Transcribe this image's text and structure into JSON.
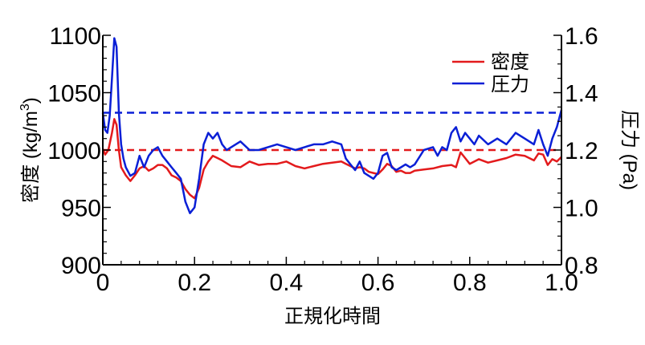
{
  "chart_data": {
    "type": "line",
    "title": "",
    "xlabel": "正規化時間",
    "ylabel_left": "密度 (kg/m³)",
    "ylabel_left_parts": {
      "main": "密度 (kg/m",
      "sup": "3",
      "close": ")"
    },
    "ylabel_right": "圧力 (Pa)",
    "xlim": [
      0,
      1.0
    ],
    "ylim_left": [
      900,
      1100
    ],
    "ylim_right": [
      0.8,
      1.6
    ],
    "x_ticks": [
      {
        "value": 0,
        "label": "0"
      },
      {
        "value": 0.2,
        "label": "0.2"
      },
      {
        "value": 0.4,
        "label": "0.4"
      },
      {
        "value": 0.6,
        "label": "0.6"
      },
      {
        "value": 0.8,
        "label": "0.8"
      },
      {
        "value": 1.0,
        "label": "1.0"
      }
    ],
    "y_left_ticks": [
      {
        "value": 900,
        "label": "900"
      },
      {
        "value": 950,
        "label": "950"
      },
      {
        "value": 1000,
        "label": "1000"
      },
      {
        "value": 1050,
        "label": "1050"
      },
      {
        "value": 1100,
        "label": "1100"
      }
    ],
    "y_right_ticks": [
      {
        "value": 0.8,
        "label": "0.8"
      },
      {
        "value": 1.0,
        "label": "1.0"
      },
      {
        "value": 1.2,
        "label": "1.2"
      },
      {
        "value": 1.4,
        "label": "1.4"
      },
      {
        "value": 1.6,
        "label": "1.6"
      }
    ],
    "grid": false,
    "legend_position": "top-right",
    "colors": {
      "density": "#e31a1c",
      "pressure": "#0a1fd6",
      "axis": "#000000"
    },
    "series": [
      {
        "name": "密度",
        "axis": "left",
        "color": "#e31a1c",
        "x": [
          0,
          0.005,
          0.012,
          0.02,
          0.025,
          0.03,
          0.035,
          0.04,
          0.05,
          0.06,
          0.07,
          0.08,
          0.09,
          0.1,
          0.11,
          0.12,
          0.13,
          0.14,
          0.15,
          0.16,
          0.17,
          0.18,
          0.19,
          0.2,
          0.21,
          0.22,
          0.23,
          0.24,
          0.25,
          0.26,
          0.28,
          0.3,
          0.32,
          0.34,
          0.36,
          0.38,
          0.4,
          0.42,
          0.44,
          0.45,
          0.46,
          0.48,
          0.5,
          0.52,
          0.53,
          0.55,
          0.56,
          0.57,
          0.58,
          0.59,
          0.6,
          0.61,
          0.62,
          0.63,
          0.64,
          0.65,
          0.66,
          0.67,
          0.68,
          0.7,
          0.72,
          0.74,
          0.76,
          0.77,
          0.78,
          0.79,
          0.8,
          0.82,
          0.84,
          0.86,
          0.88,
          0.9,
          0.92,
          0.94,
          0.95,
          0.96,
          0.97,
          0.98,
          0.99,
          1.0
        ],
        "values": [
          1001,
          996,
          1000,
          1015,
          1027,
          1022,
          1000,
          985,
          978,
          973,
          978,
          984,
          986,
          982,
          984,
          987,
          987,
          984,
          978,
          976,
          973,
          966,
          961,
          958,
          967,
          983,
          990,
          995,
          993,
          991,
          986,
          985,
          990,
          987,
          988,
          988,
          990,
          986,
          984,
          985,
          986,
          988,
          989,
          990,
          988,
          984,
          985,
          984,
          981,
          980,
          979,
          983,
          988,
          986,
          981,
          982,
          980,
          980,
          982,
          983,
          984,
          986,
          987,
          985,
          998,
          993,
          988,
          992,
          989,
          991,
          993,
          996,
          995,
          991,
          997,
          996,
          987,
          992,
          990,
          994
        ]
      },
      {
        "name": "圧力",
        "axis": "right",
        "color": "#0a1fd6",
        "x": [
          0,
          0.005,
          0.01,
          0.015,
          0.02,
          0.025,
          0.03,
          0.035,
          0.04,
          0.045,
          0.05,
          0.06,
          0.07,
          0.08,
          0.085,
          0.09,
          0.1,
          0.11,
          0.12,
          0.13,
          0.14,
          0.15,
          0.16,
          0.17,
          0.18,
          0.19,
          0.2,
          0.21,
          0.22,
          0.23,
          0.24,
          0.25,
          0.26,
          0.27,
          0.28,
          0.3,
          0.32,
          0.34,
          0.36,
          0.38,
          0.4,
          0.42,
          0.44,
          0.46,
          0.48,
          0.5,
          0.52,
          0.53,
          0.54,
          0.55,
          0.56,
          0.57,
          0.58,
          0.59,
          0.6,
          0.61,
          0.62,
          0.63,
          0.64,
          0.65,
          0.66,
          0.67,
          0.68,
          0.7,
          0.72,
          0.73,
          0.74,
          0.75,
          0.76,
          0.77,
          0.78,
          0.79,
          0.8,
          0.81,
          0.82,
          0.84,
          0.86,
          0.88,
          0.9,
          0.92,
          0.94,
          0.95,
          0.96,
          0.97,
          0.98,
          0.99,
          1.0
        ],
        "values": [
          1.33,
          1.27,
          1.26,
          1.32,
          1.45,
          1.59,
          1.56,
          1.33,
          1.22,
          1.17,
          1.14,
          1.11,
          1.12,
          1.18,
          1.16,
          1.14,
          1.18,
          1.2,
          1.21,
          1.18,
          1.16,
          1.14,
          1.12,
          1.1,
          1.02,
          0.98,
          1.0,
          1.1,
          1.22,
          1.26,
          1.24,
          1.26,
          1.22,
          1.2,
          1.21,
          1.23,
          1.2,
          1.2,
          1.21,
          1.22,
          1.21,
          1.2,
          1.21,
          1.22,
          1.22,
          1.23,
          1.22,
          1.17,
          1.15,
          1.13,
          1.16,
          1.12,
          1.11,
          1.1,
          1.12,
          1.18,
          1.19,
          1.14,
          1.13,
          1.14,
          1.15,
          1.14,
          1.15,
          1.2,
          1.21,
          1.18,
          1.21,
          1.2,
          1.26,
          1.28,
          1.23,
          1.26,
          1.24,
          1.22,
          1.25,
          1.22,
          1.24,
          1.22,
          1.26,
          1.24,
          1.22,
          1.27,
          1.22,
          1.18,
          1.24,
          1.28,
          1.34
        ]
      }
    ],
    "reference_lines": [
      {
        "axis": "left",
        "value": 1000,
        "color": "#e31a1c",
        "style": "dashed"
      },
      {
        "axis": "right",
        "value": 1.33,
        "color": "#0a1fd6",
        "style": "dashed"
      }
    ]
  }
}
